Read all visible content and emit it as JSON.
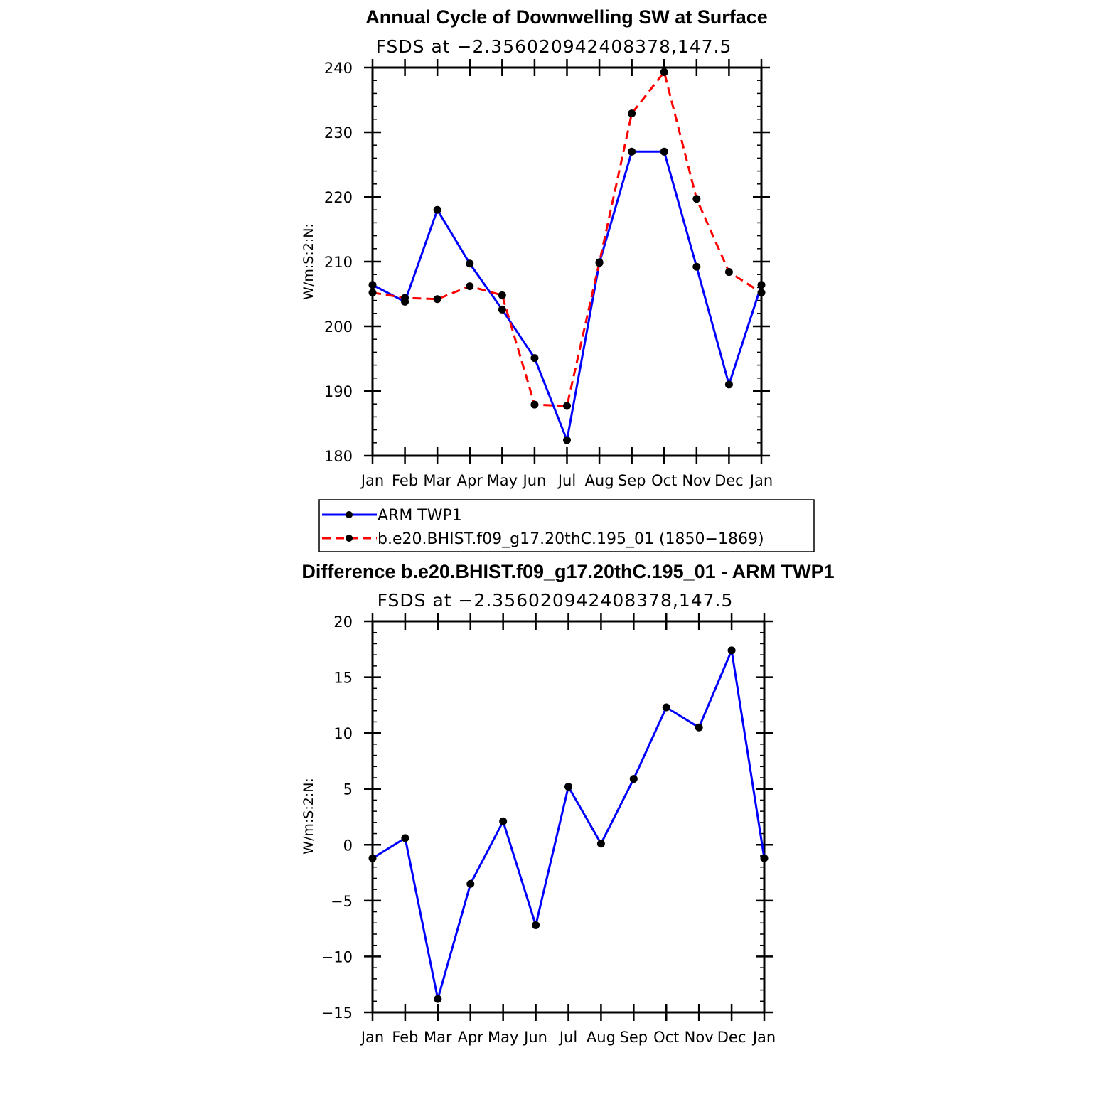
{
  "chart_data": [
    {
      "type": "line",
      "title": "Annual Cycle of Downwelling SW at Surface",
      "subtitle": "FSDS at −2.356020942408378,147.5",
      "ylabel": "W/m:S:2:N:",
      "xlabel": "",
      "categories": [
        "Jan",
        "Feb",
        "Mar",
        "Apr",
        "May",
        "Jun",
        "Jul",
        "Aug",
        "Sep",
        "Oct",
        "Nov",
        "Dec",
        "Jan"
      ],
      "ylim": [
        180,
        240
      ],
      "yticks": [
        180,
        190,
        200,
        210,
        220,
        230,
        240
      ],
      "ytick_labels": [
        "180",
        "190",
        "200",
        "210",
        "220",
        "230",
        "240"
      ],
      "series": [
        {
          "name": "ARM  TWP1",
          "color": "#0000ff",
          "style": "solid",
          "values": [
            206.4,
            203.8,
            218.0,
            209.7,
            202.6,
            195.1,
            182.4,
            209.8,
            227.0,
            227.0,
            209.2,
            191.0,
            206.4
          ]
        },
        {
          "name": "b.e20.BHIST.f09_g17.20thC.195_01 (1850−1869)",
          "color": "#ff0000",
          "style": "dashed",
          "values": [
            205.2,
            204.4,
            204.2,
            206.2,
            204.8,
            187.9,
            187.7,
            209.9,
            232.9,
            239.3,
            219.7,
            208.4,
            205.2
          ]
        }
      ],
      "legend": "below"
    },
    {
      "type": "line",
      "title": "Difference b.e20.BHIST.f09_g17.20thC.195_01 - ARM TWP1",
      "subtitle": "FSDS at −2.356020942408378,147.5",
      "ylabel": "W/m:S:2:N:",
      "xlabel": "",
      "categories": [
        "Jan",
        "Feb",
        "Mar",
        "Apr",
        "May",
        "Jun",
        "Jul",
        "Aug",
        "Sep",
        "Oct",
        "Nov",
        "Dec",
        "Jan"
      ],
      "ylim": [
        -15,
        20
      ],
      "yticks": [
        -15,
        -10,
        -5,
        0,
        5,
        10,
        15,
        20
      ],
      "ytick_labels": [
        "−15",
        "−10",
        "−5",
        "0",
        "5",
        "10",
        "15",
        "20"
      ],
      "series": [
        {
          "color": "#0000ff",
          "style": "solid",
          "values": [
            -1.2,
            0.6,
            -13.8,
            -3.5,
            2.1,
            -7.2,
            5.2,
            0.1,
            5.9,
            12.3,
            10.5,
            17.4,
            -1.2
          ]
        }
      ]
    }
  ]
}
